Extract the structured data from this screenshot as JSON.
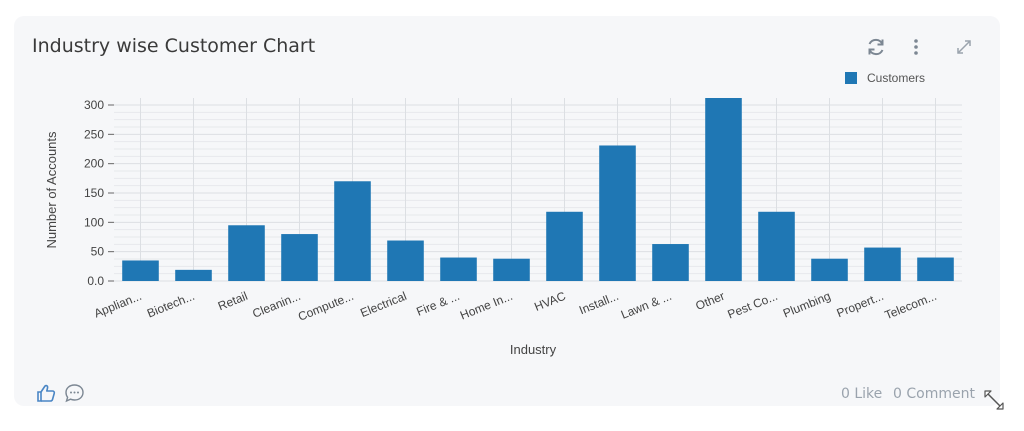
{
  "card": {
    "title": "Industry wise Customer Chart",
    "like_text": "0 Like",
    "comment_text": "0 Comment"
  },
  "icons": {
    "refresh": "refresh-icon",
    "menu": "kebab-menu-icon",
    "expand": "expand-icon",
    "like": "thumbs-up-icon",
    "comment": "comment-icon",
    "resize": "resize-handle-icon"
  },
  "colors": {
    "bar": "#1f77b4",
    "icon": "#7c8793",
    "blue_icon": "#4a86c5"
  },
  "chart_data": {
    "type": "bar",
    "title": "",
    "xlabel": "Industry",
    "ylabel": "Number of Accounts",
    "categories": [
      "Applian...",
      "Biotech...",
      "Retail",
      "Cleanin...",
      "Compute...",
      "Electrical",
      "Fire & ...",
      "Home In...",
      "HVAC",
      "Install...",
      "Lawn & ...",
      "Other",
      "Pest Co...",
      "Plumbing",
      "Propert...",
      "Telecom..."
    ],
    "series": [
      {
        "name": "Customers",
        "values": [
          35,
          19,
          95,
          80,
          170,
          69,
          40,
          38,
          118,
          231,
          63,
          312,
          118,
          38,
          57,
          40
        ]
      }
    ],
    "yticks": [
      "0.0",
      "50",
      "100",
      "150",
      "200",
      "250",
      "300"
    ],
    "ylim": [
      0,
      312
    ],
    "grid": true,
    "legend": "top-right"
  }
}
